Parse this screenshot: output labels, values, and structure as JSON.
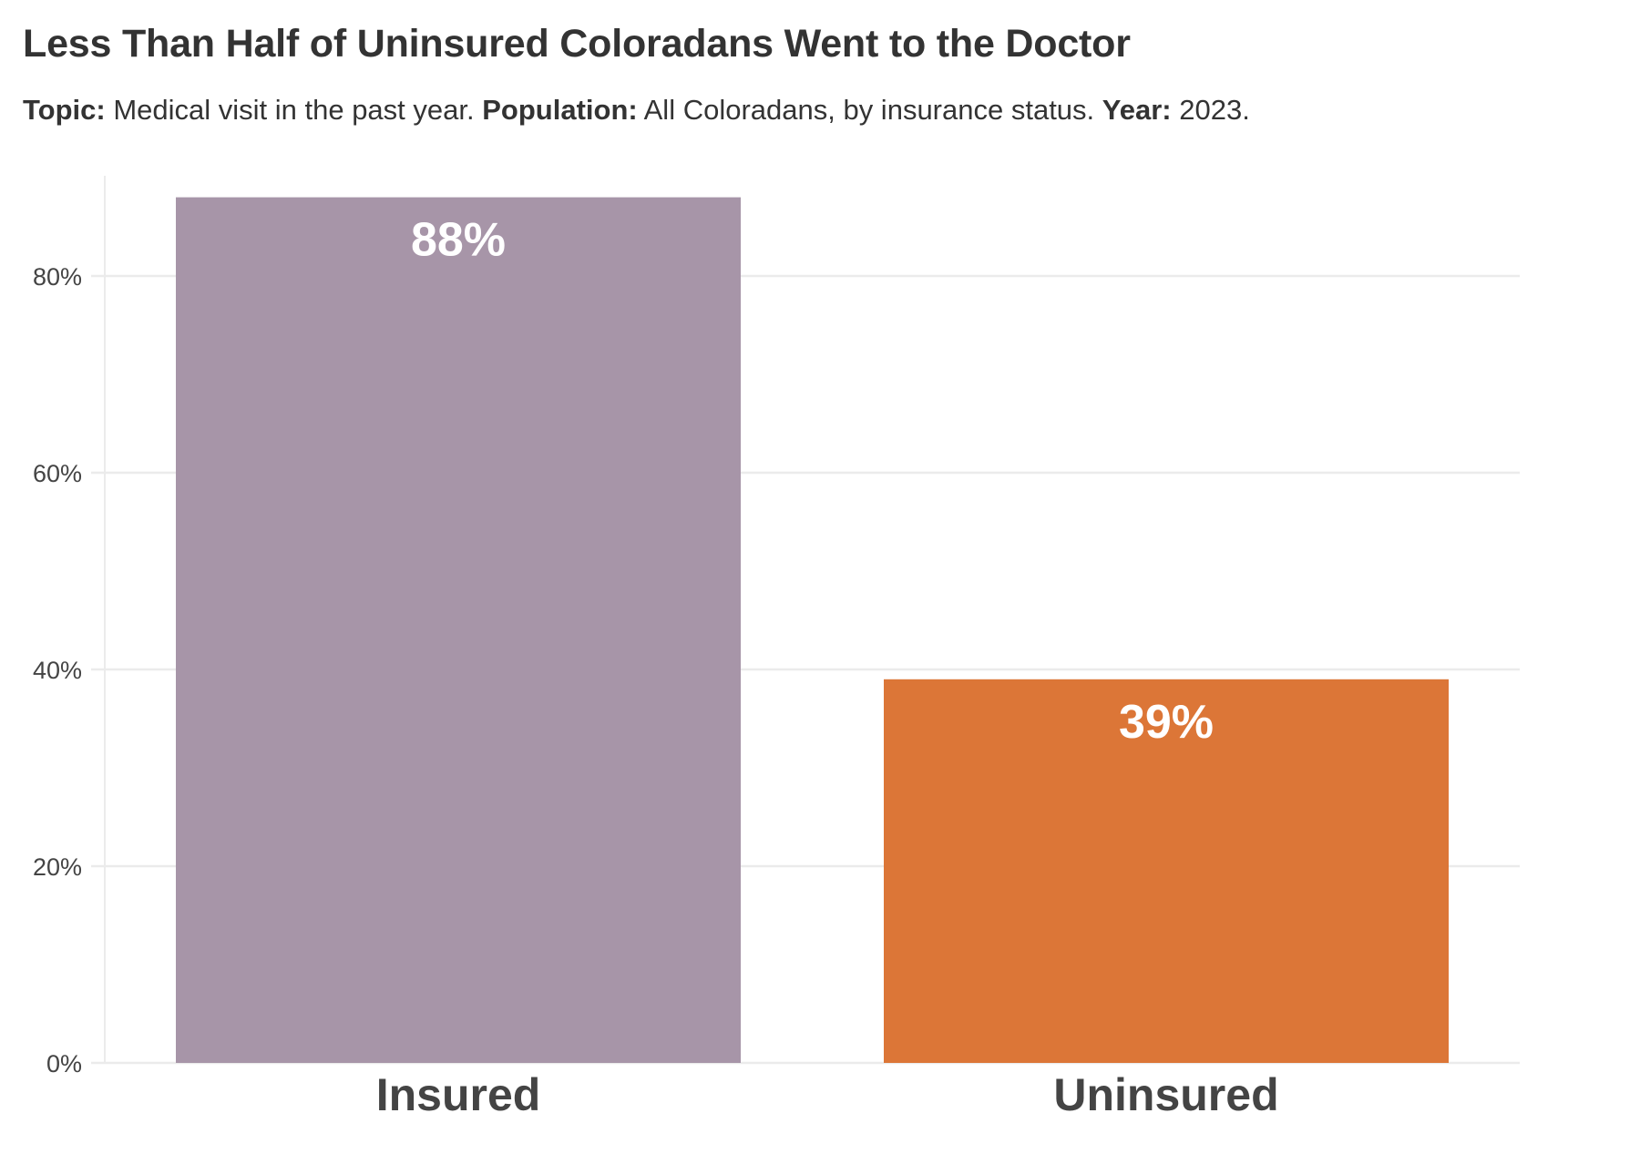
{
  "chart_data": {
    "type": "bar",
    "title": "Less Than Half of Uninsured Coloradans Went to the Doctor",
    "subtitle": {
      "topic_label": "Topic:",
      "topic_value": "Medical visit in the past year.",
      "population_label": "Population:",
      "population_value": "All Coloradans, by insurance status.",
      "year_label": "Year:",
      "year_value": "2023."
    },
    "categories": [
      "Insured",
      "Uninsured"
    ],
    "values": [
      88,
      39
    ],
    "data_labels": [
      "88%",
      "39%"
    ],
    "colors": [
      "#a795a8",
      "#dc7637"
    ],
    "ylim": [
      0,
      90
    ],
    "yticks": [
      0,
      20,
      40,
      60,
      80
    ],
    "ytick_labels": [
      "0%",
      "20%",
      "40%",
      "60%",
      "80%"
    ],
    "xlabel": "",
    "ylabel": "",
    "grid": true,
    "legend": "none"
  }
}
